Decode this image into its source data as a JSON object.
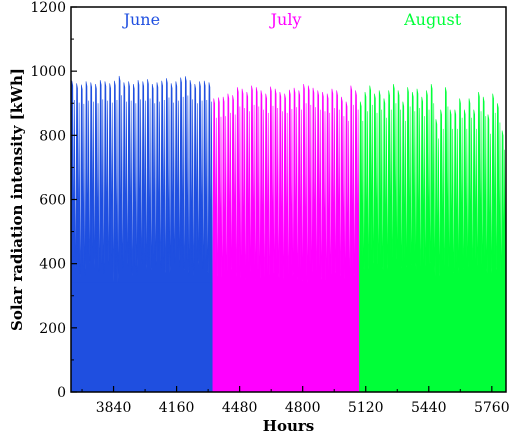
{
  "chart_data": {
    "type": "area",
    "xlabel": "Hours",
    "ylabel": "Solar radiation intensity [kWh]",
    "xlim": [
      3624,
      5832
    ],
    "ylim": [
      0,
      1200
    ],
    "xticks": [
      3840,
      4160,
      4480,
      4800,
      5120,
      5440,
      5760
    ],
    "yticks": [
      0,
      200,
      400,
      600,
      800,
      1000,
      1200
    ],
    "grid": false,
    "series": [
      {
        "name": "June",
        "color": "#1f4fe0",
        "start_hour": 3624,
        "end_hour": 4343,
        "daily_peaks": [
          970,
          962,
          958,
          968,
          965,
          960,
          972,
          968,
          962,
          970,
          985,
          965,
          968,
          960,
          972,
          968,
          975,
          960,
          965,
          970,
          978,
          962,
          968,
          980,
          984,
          972,
          960,
          968,
          970,
          965
        ],
        "daily_troughs": [
          390,
          380,
          360,
          400,
          420,
          385,
          370,
          410,
          395,
          340,
          380,
          405,
          390,
          360,
          420,
          400,
          380,
          395,
          410,
          385,
          370,
          400,
          420,
          390,
          380,
          360,
          410,
          395,
          380,
          370
        ]
      },
      {
        "name": "July",
        "color": "#ff00ff",
        "start_hour": 4344,
        "end_hour": 5087,
        "daily_peaks": [
          915,
          918,
          920,
          930,
          925,
          950,
          945,
          935,
          955,
          950,
          940,
          930,
          952,
          945,
          935,
          930,
          942,
          948,
          940,
          960,
          955,
          948,
          940,
          935,
          930,
          945,
          940,
          920,
          905,
          955,
          940
        ],
        "daily_troughs": [
          370,
          360,
          340,
          380,
          390,
          360,
          350,
          370,
          380,
          345,
          360,
          340,
          370,
          380,
          355,
          350,
          360,
          375,
          350,
          340,
          365,
          380,
          360,
          350,
          345,
          370,
          380,
          360,
          340,
          355,
          370
        ]
      },
      {
        "name": "August",
        "color": "#00ff38",
        "start_hour": 5088,
        "end_hour": 5831,
        "daily_peaks": [
          905,
          935,
          955,
          930,
          940,
          915,
          940,
          960,
          940,
          905,
          950,
          935,
          945,
          920,
          940,
          960,
          850,
          880,
          950,
          880,
          880,
          915,
          880,
          915,
          880,
          935,
          920,
          865,
          930,
          900,
          815
        ],
        "daily_troughs": [
          390,
          380,
          410,
          400,
          395,
          380,
          405,
          420,
          400,
          385,
          395,
          405,
          380,
          370,
          400,
          410,
          360,
          375,
          395,
          380,
          370,
          390,
          385,
          395,
          380,
          400,
          390,
          370,
          395,
          380,
          350
        ]
      }
    ],
    "annotations": [
      "June",
      "July",
      "August"
    ]
  }
}
